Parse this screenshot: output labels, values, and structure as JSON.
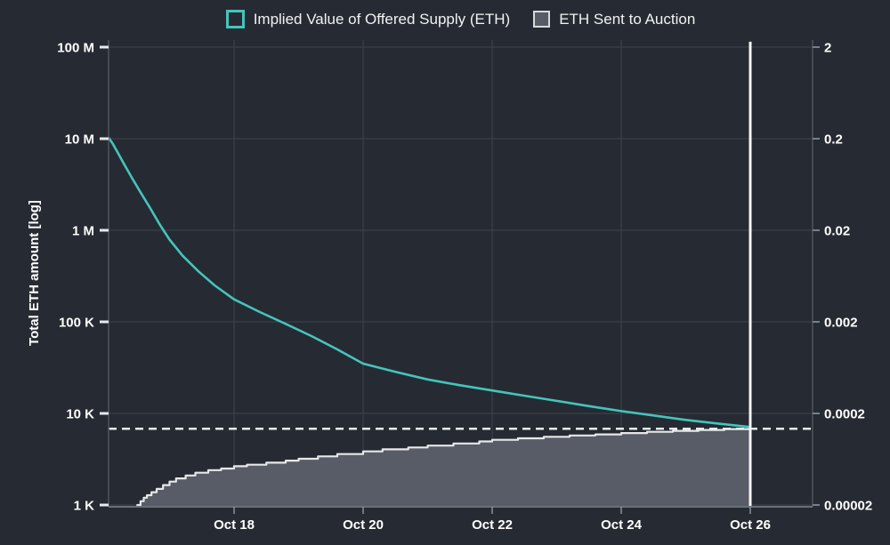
{
  "colors": {
    "background": "#262b33",
    "teal": "#45c4bc",
    "area_fill": "#585c66",
    "area_edge": "#e6e8ea",
    "grid": "#3d434c",
    "axis": "#4e545c",
    "bottom_axis": "#6a707a",
    "left_tick": "#e8eaec",
    "right_tick": "#79808a",
    "bottom_tick": "#8a9199",
    "text": "#ffffff",
    "dashed": "#e8eaec",
    "vertical_line": "#f4f5f6"
  },
  "legend": {
    "items": [
      {
        "label": "Implied Value of Offered Supply (ETH)",
        "swatch": {
          "fill": "#262b33",
          "border": "#45c4bc",
          "border_width": 3
        }
      },
      {
        "label": "ETH Sent to Auction",
        "swatch": {
          "fill": "#585c66",
          "border": "#d8dadc",
          "border_width": 2
        }
      }
    ]
  },
  "chart_data": {
    "type": "line+area-step",
    "title": "",
    "grid": true,
    "legend_position": "top-center",
    "x_axis": {
      "month": "Oct",
      "range_days": [
        16.05,
        26.97
      ],
      "ticks": [
        {
          "day": 18,
          "label": "Oct 18"
        },
        {
          "day": 20,
          "label": "Oct 20"
        },
        {
          "day": 22,
          "label": "Oct 22"
        },
        {
          "day": 24,
          "label": "Oct 24"
        },
        {
          "day": 26,
          "label": "Oct 26"
        }
      ]
    },
    "left_axis": {
      "title": "Total ETH amount [log]",
      "scale": "log",
      "range": [
        1000,
        100000000
      ],
      "ticks": [
        {
          "value": 1000,
          "label": "1 K"
        },
        {
          "value": 10000,
          "label": "10 K"
        },
        {
          "value": 100000,
          "label": "100 K"
        },
        {
          "value": 1000000,
          "label": "1 M"
        },
        {
          "value": 10000000,
          "label": "10 M"
        },
        {
          "value": 100000000,
          "label": "100 M"
        }
      ]
    },
    "right_axis": {
      "scale": "log",
      "range": [
        2e-05,
        2
      ],
      "ticks": [
        {
          "value": 2e-05,
          "label": "0.00002"
        },
        {
          "value": 0.0002,
          "label": "0.0002"
        },
        {
          "value": 0.002,
          "label": "0.002"
        },
        {
          "value": 0.02,
          "label": "0.02"
        },
        {
          "value": 0.2,
          "label": "0.2"
        },
        {
          "value": 2,
          "label": "2"
        }
      ]
    },
    "series": [
      {
        "name": "Implied Value of Offered Supply (ETH)",
        "type": "line",
        "color": "#45c4bc",
        "points": [
          [
            16.06,
            10200000
          ],
          [
            16.12,
            8800000
          ],
          [
            16.2,
            7000000
          ],
          [
            16.3,
            5200000
          ],
          [
            16.42,
            3700000
          ],
          [
            16.55,
            2600000
          ],
          [
            16.7,
            1750000
          ],
          [
            16.85,
            1150000
          ],
          [
            17.0,
            790000
          ],
          [
            17.2,
            530000
          ],
          [
            17.45,
            355000
          ],
          [
            17.7,
            250000
          ],
          [
            18.0,
            176000
          ],
          [
            18.4,
            128000
          ],
          [
            18.8,
            95000
          ],
          [
            19.2,
            70000
          ],
          [
            19.6,
            50000
          ],
          [
            20.0,
            35000
          ],
          [
            20.5,
            28500
          ],
          [
            21.0,
            23500
          ],
          [
            21.5,
            20300
          ],
          [
            22.0,
            17800
          ],
          [
            22.5,
            15600
          ],
          [
            23.0,
            13700
          ],
          [
            23.5,
            12000
          ],
          [
            24.0,
            10600
          ],
          [
            24.5,
            9500
          ],
          [
            25.0,
            8500
          ],
          [
            25.5,
            7750
          ],
          [
            26.0,
            7100
          ]
        ]
      },
      {
        "name": "ETH Sent to Auction",
        "type": "area-step",
        "fill": "#585c66",
        "edge_color": "#e6e8ea",
        "points": [
          [
            16.5,
            1000
          ],
          [
            16.55,
            1100
          ],
          [
            16.6,
            1200
          ],
          [
            16.65,
            1280
          ],
          [
            16.72,
            1380
          ],
          [
            16.8,
            1500
          ],
          [
            16.9,
            1650
          ],
          [
            17.0,
            1800
          ],
          [
            17.1,
            1950
          ],
          [
            17.25,
            2100
          ],
          [
            17.4,
            2250
          ],
          [
            17.6,
            2400
          ],
          [
            17.8,
            2500
          ],
          [
            18.0,
            2650
          ],
          [
            18.2,
            2750
          ],
          [
            18.5,
            2900
          ],
          [
            18.8,
            3050
          ],
          [
            19.0,
            3200
          ],
          [
            19.3,
            3400
          ],
          [
            19.6,
            3600
          ],
          [
            20.0,
            3850
          ],
          [
            20.3,
            4050
          ],
          [
            20.7,
            4250
          ],
          [
            21.0,
            4450
          ],
          [
            21.4,
            4700
          ],
          [
            21.8,
            4950
          ],
          [
            22.0,
            5150
          ],
          [
            22.4,
            5350
          ],
          [
            22.8,
            5550
          ],
          [
            23.2,
            5750
          ],
          [
            23.6,
            5900
          ],
          [
            24.0,
            6100
          ],
          [
            24.4,
            6300
          ],
          [
            24.8,
            6450
          ],
          [
            25.2,
            6600
          ],
          [
            25.6,
            6750
          ],
          [
            26.0,
            6900
          ]
        ]
      }
    ],
    "annotations": {
      "dashed_line_eth": 6800,
      "vertical_line_day": 26
    }
  }
}
